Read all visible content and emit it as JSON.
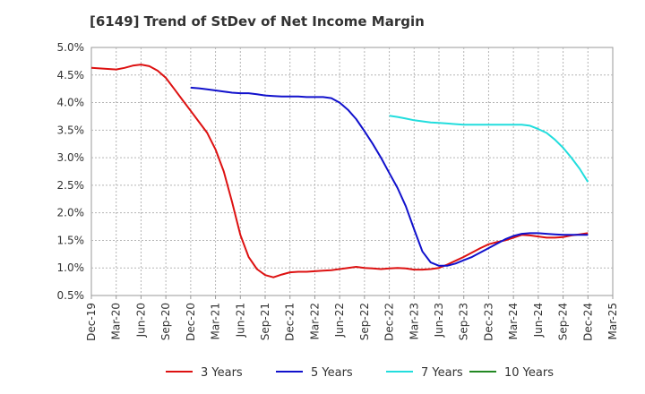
{
  "title": "[6149]  Trend of StDev of Net Income Margin",
  "chart_data": {
    "type": "line",
    "title": "[6149]  Trend of StDev of Net Income Margin",
    "xlabel": "",
    "ylabel": "",
    "x_tick_labels": [
      "Dec-19",
      "Mar-20",
      "Jun-20",
      "Sep-20",
      "Dec-20",
      "Mar-21",
      "Jun-21",
      "Sep-21",
      "Dec-21",
      "Mar-22",
      "Jun-22",
      "Sep-22",
      "Dec-22",
      "Mar-23",
      "Jun-23",
      "Sep-23",
      "Dec-23",
      "Mar-24",
      "Jun-24",
      "Sep-24",
      "Dec-24",
      "Mar-25"
    ],
    "y_tick_labels": [
      "0.5%",
      "1.0%",
      "1.5%",
      "2.0%",
      "2.5%",
      "3.0%",
      "3.5%",
      "4.0%",
      "4.5%",
      "5.0%"
    ],
    "ylim": [
      0.5,
      5.0
    ],
    "grid": true,
    "legend_position": "bottom",
    "series": [
      {
        "name": "3 Years",
        "color": "#dd1111",
        "x": [
          "Dec-19",
          "Jan-20",
          "Feb-20",
          "Mar-20",
          "Apr-20",
          "May-20",
          "Jun-20",
          "Jul-20",
          "Aug-20",
          "Sep-20",
          "Oct-20",
          "Nov-20",
          "Dec-20",
          "Jan-21",
          "Feb-21",
          "Mar-21",
          "Apr-21",
          "May-21",
          "Jun-21",
          "Jul-21",
          "Aug-21",
          "Sep-21",
          "Oct-21",
          "Nov-21",
          "Dec-21",
          "Jan-22",
          "Feb-22",
          "Mar-22",
          "Apr-22",
          "May-22",
          "Jun-22",
          "Jul-22",
          "Aug-22",
          "Sep-22",
          "Oct-22",
          "Nov-22",
          "Dec-22",
          "Jan-23",
          "Feb-23",
          "Mar-23",
          "Apr-23",
          "May-23",
          "Jun-23",
          "Jul-23",
          "Aug-23",
          "Sep-23",
          "Oct-23",
          "Nov-23",
          "Dec-23",
          "Jan-24",
          "Feb-24",
          "Mar-24",
          "Apr-24",
          "May-24",
          "Jun-24",
          "Jul-24",
          "Aug-24",
          "Sep-24",
          "Oct-24",
          "Nov-24",
          "Dec-24"
        ],
        "values": [
          4.63,
          4.62,
          4.61,
          4.6,
          4.63,
          4.67,
          4.69,
          4.66,
          4.58,
          4.45,
          4.25,
          4.05,
          3.85,
          3.65,
          3.45,
          3.15,
          2.75,
          2.2,
          1.6,
          1.2,
          0.98,
          0.87,
          0.83,
          0.88,
          0.92,
          0.93,
          0.93,
          0.94,
          0.95,
          0.96,
          0.98,
          1.0,
          1.02,
          1.0,
          0.99,
          0.98,
          0.99,
          1.0,
          0.99,
          0.97,
          0.97,
          0.98,
          1.0,
          1.06,
          1.13,
          1.2,
          1.28,
          1.36,
          1.43,
          1.47,
          1.5,
          1.55,
          1.6,
          1.59,
          1.57,
          1.55,
          1.55,
          1.56,
          1.59,
          1.61,
          1.63
        ]
      },
      {
        "name": "5 Years",
        "color": "#1111cc",
        "x": [
          "Dec-20",
          "Jan-21",
          "Feb-21",
          "Mar-21",
          "Apr-21",
          "May-21",
          "Jun-21",
          "Jul-21",
          "Aug-21",
          "Sep-21",
          "Oct-21",
          "Nov-21",
          "Dec-21",
          "Jan-22",
          "Feb-22",
          "Mar-22",
          "Apr-22",
          "May-22",
          "Jun-22",
          "Jul-22",
          "Aug-22",
          "Sep-22",
          "Oct-22",
          "Nov-22",
          "Dec-22",
          "Jan-23",
          "Feb-23",
          "Mar-23",
          "Apr-23",
          "May-23",
          "Jun-23",
          "Jul-23",
          "Aug-23",
          "Sep-23",
          "Oct-23",
          "Nov-23",
          "Dec-23",
          "Jan-24",
          "Feb-24",
          "Mar-24",
          "Apr-24",
          "May-24",
          "Jun-24",
          "Jul-24",
          "Aug-24",
          "Sep-24",
          "Oct-24",
          "Nov-24",
          "Dec-24"
        ],
        "values": [
          4.27,
          4.26,
          4.24,
          4.22,
          4.2,
          4.18,
          4.17,
          4.17,
          4.15,
          4.13,
          4.12,
          4.11,
          4.11,
          4.11,
          4.1,
          4.1,
          4.1,
          4.08,
          4.0,
          3.87,
          3.7,
          3.48,
          3.25,
          3.0,
          2.72,
          2.45,
          2.12,
          1.7,
          1.3,
          1.1,
          1.04,
          1.04,
          1.08,
          1.14,
          1.2,
          1.28,
          1.36,
          1.44,
          1.52,
          1.58,
          1.62,
          1.63,
          1.63,
          1.62,
          1.61,
          1.6,
          1.6,
          1.6,
          1.6
        ]
      },
      {
        "name": "7 Years",
        "color": "#22dddd",
        "x": [
          "Dec-22",
          "Jan-23",
          "Feb-23",
          "Mar-23",
          "Apr-23",
          "May-23",
          "Jun-23",
          "Jul-23",
          "Aug-23",
          "Sep-23",
          "Oct-23",
          "Nov-23",
          "Dec-23",
          "Jan-24",
          "Feb-24",
          "Mar-24",
          "Apr-24",
          "May-24",
          "Jun-24",
          "Jul-24",
          "Aug-24",
          "Sep-24",
          "Oct-24",
          "Nov-24",
          "Dec-24"
        ],
        "values": [
          3.76,
          3.74,
          3.71,
          3.68,
          3.66,
          3.64,
          3.63,
          3.62,
          3.61,
          3.6,
          3.6,
          3.6,
          3.6,
          3.6,
          3.6,
          3.6,
          3.6,
          3.58,
          3.52,
          3.45,
          3.33,
          3.18,
          3.0,
          2.8,
          2.56
        ]
      },
      {
        "name": "10 Years",
        "color": "#228822",
        "x": [],
        "values": []
      }
    ]
  }
}
